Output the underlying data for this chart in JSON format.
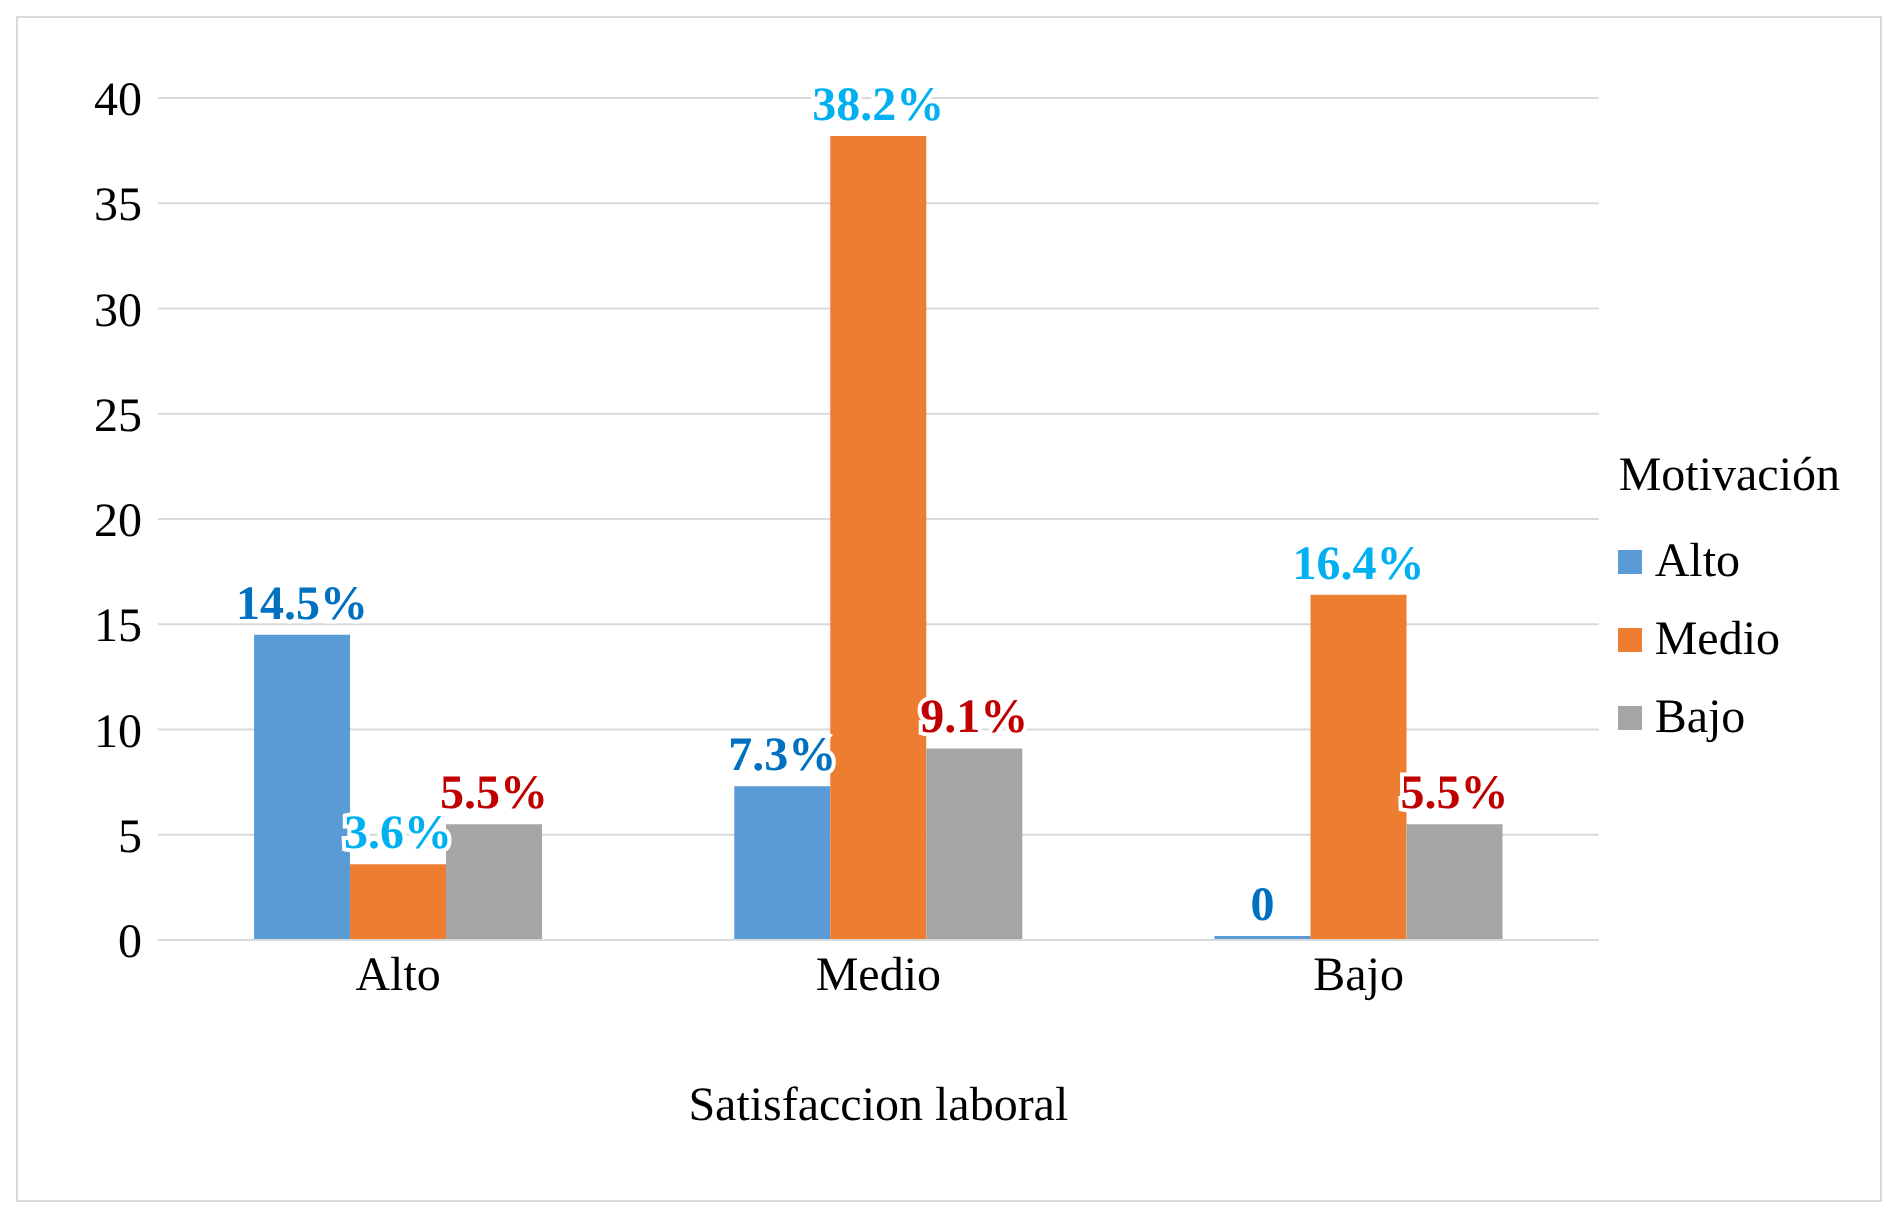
{
  "chart_data": {
    "type": "bar",
    "xlabel": "Satisfaccion laboral",
    "legend_title": "Motivación",
    "categories": [
      "Alto",
      "Medio",
      "Bajo"
    ],
    "series": [
      {
        "name": "Alto",
        "color": "#5b9bd5",
        "values": [
          14.5,
          7.3,
          0
        ],
        "value_labels": [
          "14.5%",
          "7.3%",
          "0"
        ]
      },
      {
        "name": "Medio",
        "color": "#ed7d31",
        "values": [
          3.6,
          38.2,
          16.4
        ],
        "value_labels": [
          "3.6%",
          "38.2%",
          "16.4%"
        ]
      },
      {
        "name": "Bajo",
        "color": "#a5a5a5",
        "values": [
          5.5,
          9.1,
          5.5
        ],
        "value_labels": [
          "5.5%",
          "9.1%",
          "5.5%"
        ]
      }
    ],
    "ylim": [
      0,
      40
    ],
    "yticks": [
      0,
      5,
      10,
      15,
      20,
      25,
      30,
      35,
      40
    ],
    "grid": "y",
    "legend": "right"
  }
}
